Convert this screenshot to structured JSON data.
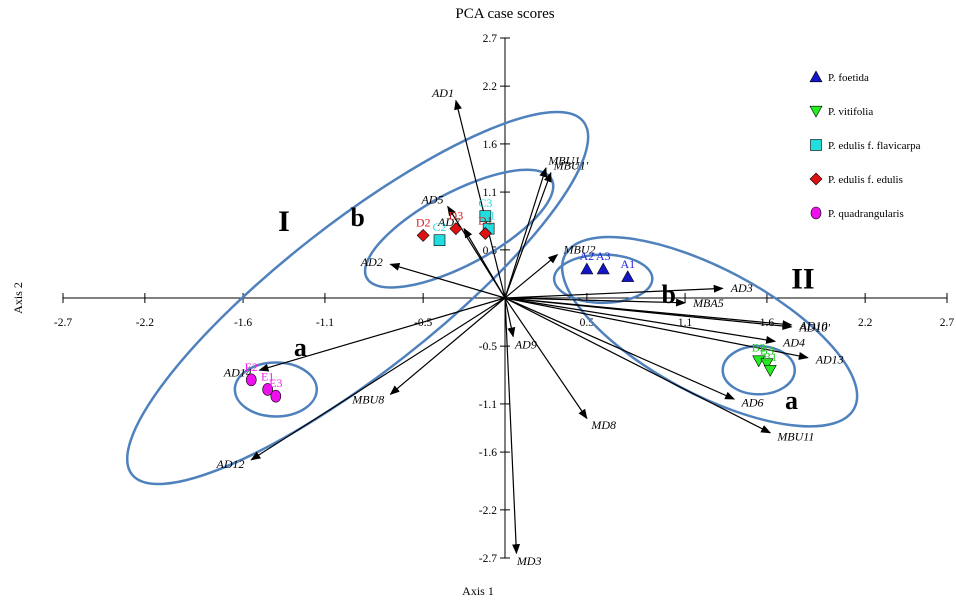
{
  "chart_data": {
    "type": "scatter",
    "title": "PCA case scores",
    "xlabel": "Axis 1",
    "ylabel": "Axis 2",
    "xlim": [
      -2.7,
      2.7
    ],
    "ylim": [
      -2.7,
      2.7
    ],
    "x_ticks": [
      "-2.7",
      "-2.2",
      "-1.6",
      "-1.1",
      "-0.5",
      "0.5",
      "1.1",
      "1.6",
      "2.2",
      "2.7"
    ],
    "y_ticks": [
      "2.7",
      "2.2",
      "1.6",
      "1.1",
      "0.5",
      "-0.5",
      "-1.1",
      "-1.6",
      "-2.2",
      "-2.7"
    ],
    "legend_position": "top-right",
    "series": [
      {
        "name": "P. foetida",
        "marker": "triangle-up",
        "color": "#1414c8",
        "label_color": "#2222dd",
        "points": [
          {
            "label": "A2",
            "x": 0.5,
            "y": 0.3
          },
          {
            "label": "A3",
            "x": 0.6,
            "y": 0.3
          },
          {
            "label": "A1",
            "x": 0.75,
            "y": 0.22
          }
        ]
      },
      {
        "name": "P. vitifolia",
        "marker": "triangle-down",
        "color": "#22ee22",
        "label_color": "#22cc22",
        "points": [
          {
            "label": "B2",
            "x": 1.55,
            "y": -0.65
          },
          {
            "label": "B3",
            "x": 1.6,
            "y": -0.68
          },
          {
            "label": "B1",
            "x": 1.62,
            "y": -0.75
          }
        ]
      },
      {
        "name": "P. edulis f. flavicarpa",
        "marker": "square",
        "color": "#22dddd",
        "label_color": "#22dddd",
        "points": [
          {
            "label": "C2",
            "x": -0.4,
            "y": 0.6
          },
          {
            "label": "C3",
            "x": -0.12,
            "y": 0.85
          },
          {
            "label": "C1",
            "x": -0.1,
            "y": 0.72
          }
        ]
      },
      {
        "name": "P. edulis f. edulis",
        "marker": "diamond",
        "color": "#dd1111",
        "label_color": "#dd2222",
        "points": [
          {
            "label": "D2",
            "x": -0.5,
            "y": 0.65
          },
          {
            "label": "D3",
            "x": -0.3,
            "y": 0.72
          },
          {
            "label": "D1",
            "x": -0.12,
            "y": 0.67
          }
        ]
      },
      {
        "name": "P. quadrangularis",
        "marker": "circle",
        "color": "#ee11ee",
        "label_color": "#ee22ee",
        "points": [
          {
            "label": "E2",
            "x": -1.55,
            "y": -0.85
          },
          {
            "label": "E1",
            "x": -1.45,
            "y": -0.95
          },
          {
            "label": "E3",
            "x": -1.4,
            "y": -1.02
          }
        ]
      }
    ],
    "vectors": [
      {
        "label": "AD1",
        "x": -0.3,
        "y": 2.05
      },
      {
        "label": "MBU1",
        "x": 0.25,
        "y": 1.35
      },
      {
        "label": "MBU1'",
        "x": 0.28,
        "y": 1.3
      },
      {
        "label": "AD5",
        "x": -0.35,
        "y": 0.95
      },
      {
        "label": "AD7",
        "x": -0.25,
        "y": 0.72
      },
      {
        "label": "AD2",
        "x": -0.7,
        "y": 0.35
      },
      {
        "label": "MBU2",
        "x": 0.32,
        "y": 0.45
      },
      {
        "label": "AD3",
        "x": 1.33,
        "y": 0.1
      },
      {
        "label": "MBA5",
        "x": 1.1,
        "y": -0.05
      },
      {
        "label": "AD10",
        "x": 1.75,
        "y": -0.28
      },
      {
        "label": "AD10'",
        "x": 1.75,
        "y": -0.3
      },
      {
        "label": "AD4",
        "x": 1.65,
        "y": -0.45
      },
      {
        "label": "AD13",
        "x": 1.85,
        "y": -0.62
      },
      {
        "label": "AD6",
        "x": 1.4,
        "y": -1.05
      },
      {
        "label": "MBU11",
        "x": 1.62,
        "y": -1.4
      },
      {
        "label": "MD8",
        "x": 0.5,
        "y": -1.25
      },
      {
        "label": "AD9",
        "x": 0.05,
        "y": -0.4
      },
      {
        "label": "MD3",
        "x": 0.07,
        "y": -2.65
      },
      {
        "label": "MBU8",
        "x": -0.7,
        "y": -1.0
      },
      {
        "label": "AD14",
        "x": -1.5,
        "y": -0.75
      },
      {
        "label": "AD12",
        "x": -1.55,
        "y": -1.68
      }
    ],
    "ellipses": [
      {
        "cx": -0.9,
        "cy": 0.0,
        "rx": 1.75,
        "ry": 0.78,
        "angle": 38
      },
      {
        "cx": -0.28,
        "cy": 0.72,
        "rx": 0.64,
        "ry": 0.38,
        "angle": 28
      },
      {
        "cx": -1.4,
        "cy": -0.95,
        "rx": 0.25,
        "ry": 0.28,
        "angle": 0
      },
      {
        "cx": 1.25,
        "cy": -0.35,
        "rx": 1.0,
        "ry": 0.65,
        "angle": -28
      },
      {
        "cx": 0.6,
        "cy": 0.2,
        "rx": 0.3,
        "ry": 0.25,
        "angle": 0
      },
      {
        "cx": 1.55,
        "cy": -0.75,
        "rx": 0.22,
        "ry": 0.25,
        "angle": 0
      }
    ],
    "cluster_labels": [
      {
        "text": "I",
        "x": -1.35,
        "y": 0.8,
        "size": "large"
      },
      {
        "text": "b",
        "x": -0.9,
        "y": 0.85,
        "size": "small"
      },
      {
        "text": "a",
        "x": -1.25,
        "y": -0.5,
        "size": "small"
      },
      {
        "text": "II",
        "x": 1.82,
        "y": 0.2,
        "size": "large"
      },
      {
        "text": "b",
        "x": 1.0,
        "y": 0.05,
        "size": "small"
      },
      {
        "text": "a",
        "x": 1.75,
        "y": -1.05,
        "size": "small"
      }
    ]
  }
}
